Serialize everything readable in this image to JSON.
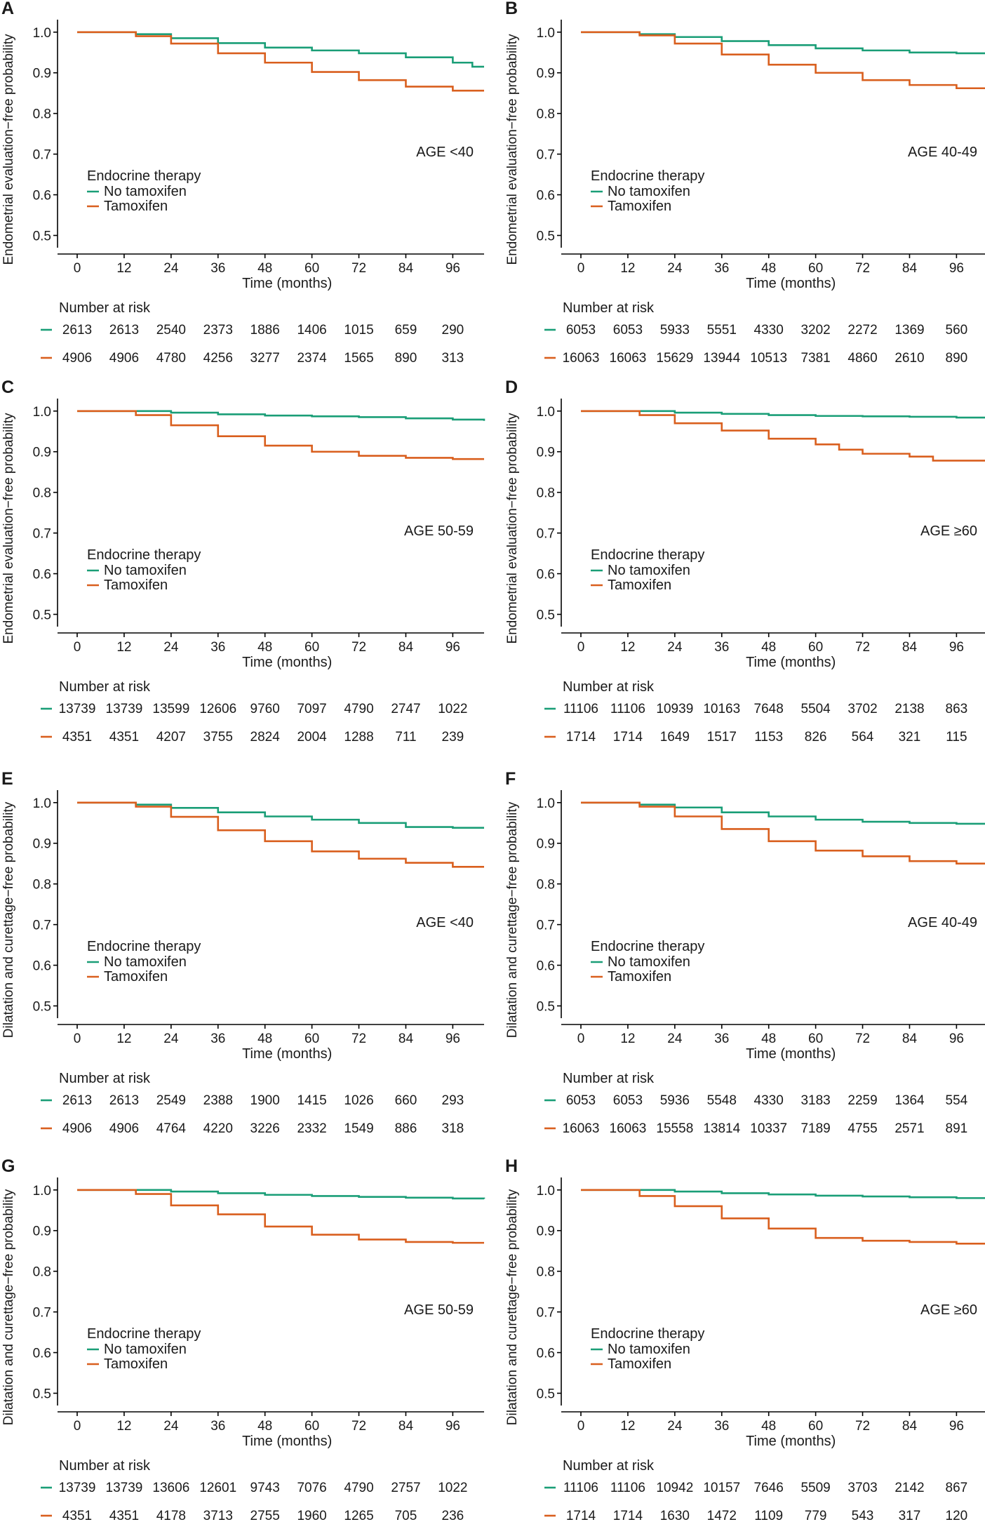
{
  "colors": {
    "no_tamoxifen": "#1a9e77",
    "tamoxifen": "#d95f1e"
  },
  "chart_data": [
    {
      "panel": "A",
      "type": "line",
      "step": true,
      "ylabel": "Endometrial evaluation−free probability",
      "xlabel": "Time (months)",
      "xticks": [
        0,
        12,
        24,
        36,
        48,
        60,
        72,
        84,
        96
      ],
      "xlim": [
        0,
        104
      ],
      "yticks": [
        "1.0",
        "0.9",
        "0.8",
        "0.7",
        "0.6",
        "0.5"
      ],
      "ylim": [
        0.475,
        1.01
      ],
      "age_label": "AGE <40",
      "legend": {
        "title": "Endocrine therapy",
        "entries": [
          "No tamoxifen",
          "Tamoxifen"
        ]
      },
      "series": [
        {
          "name": "No tamoxifen",
          "color": "#1a9e77",
          "x": [
            0,
            12,
            15,
            24,
            36,
            48,
            60,
            72,
            84,
            96,
            101,
            104
          ],
          "y": [
            1.0,
            1.0,
            0.995,
            0.985,
            0.973,
            0.962,
            0.955,
            0.948,
            0.938,
            0.925,
            0.915,
            0.915
          ]
        },
        {
          "name": "Tamoxifen",
          "color": "#d95f1e",
          "x": [
            0,
            12,
            15,
            24,
            36,
            48,
            60,
            72,
            84,
            96,
            104
          ],
          "y": [
            1.0,
            1.0,
            0.99,
            0.972,
            0.948,
            0.925,
            0.902,
            0.882,
            0.866,
            0.856,
            0.856
          ]
        }
      ],
      "risk": {
        "title": "Number at risk",
        "no_tamoxifen": [
          "2613",
          "2613",
          "2540",
          "2373",
          "1886",
          "1406",
          "1015",
          "659",
          "290"
        ],
        "tamoxifen": [
          "4906",
          "4906",
          "4780",
          "4256",
          "3277",
          "2374",
          "1565",
          "890",
          "313"
        ]
      }
    },
    {
      "panel": "B",
      "type": "line",
      "step": true,
      "ylabel": "Endometrial evaluation−free probability",
      "xlabel": "Time (months)",
      "xticks": [
        0,
        12,
        24,
        36,
        48,
        60,
        72,
        84,
        96
      ],
      "xlim": [
        0,
        104
      ],
      "yticks": [
        "1.0",
        "0.9",
        "0.8",
        "0.7",
        "0.6",
        "0.5"
      ],
      "ylim": [
        0.475,
        1.01
      ],
      "age_label": "AGE 40-49",
      "legend": {
        "title": "Endocrine therapy",
        "entries": [
          "No tamoxifen",
          "Tamoxifen"
        ]
      },
      "series": [
        {
          "name": "No tamoxifen",
          "color": "#1a9e77",
          "x": [
            0,
            12,
            15,
            24,
            36,
            48,
            60,
            72,
            84,
            96,
            104
          ],
          "y": [
            1.0,
            1.0,
            0.995,
            0.988,
            0.978,
            0.968,
            0.96,
            0.955,
            0.95,
            0.948,
            0.948
          ]
        },
        {
          "name": "Tamoxifen",
          "color": "#d95f1e",
          "x": [
            0,
            12,
            15,
            24,
            36,
            48,
            60,
            72,
            84,
            96,
            104
          ],
          "y": [
            1.0,
            1.0,
            0.992,
            0.972,
            0.945,
            0.92,
            0.9,
            0.882,
            0.87,
            0.862,
            0.855
          ]
        }
      ],
      "risk": {
        "title": "Number at risk",
        "no_tamoxifen": [
          "6053",
          "6053",
          "5933",
          "5551",
          "4330",
          "3202",
          "2272",
          "1369",
          "560"
        ],
        "tamoxifen": [
          "16063",
          "16063",
          "15629",
          "13944",
          "10513",
          "7381",
          "4860",
          "2610",
          "890"
        ]
      }
    },
    {
      "panel": "C",
      "type": "line",
      "step": true,
      "ylabel": "Endometrial evaluation−free probability",
      "xlabel": "Time (months)",
      "xticks": [
        0,
        12,
        24,
        36,
        48,
        60,
        72,
        84,
        96
      ],
      "xlim": [
        0,
        104
      ],
      "yticks": [
        "1.0",
        "0.9",
        "0.8",
        "0.7",
        "0.6",
        "0.5"
      ],
      "ylim": [
        0.475,
        1.01
      ],
      "age_label": "AGE 50-59",
      "legend": {
        "title": "Endocrine therapy",
        "entries": [
          "No tamoxifen",
          "Tamoxifen"
        ]
      },
      "series": [
        {
          "name": "No tamoxifen",
          "color": "#1a9e77",
          "x": [
            0,
            12,
            24,
            36,
            48,
            60,
            72,
            84,
            96,
            104
          ],
          "y": [
            1.0,
            1.0,
            0.996,
            0.992,
            0.989,
            0.987,
            0.985,
            0.982,
            0.979,
            0.976
          ]
        },
        {
          "name": "Tamoxifen",
          "color": "#d95f1e",
          "x": [
            0,
            12,
            15,
            24,
            36,
            48,
            60,
            72,
            84,
            96,
            104
          ],
          "y": [
            1.0,
            1.0,
            0.99,
            0.965,
            0.938,
            0.915,
            0.9,
            0.89,
            0.885,
            0.882,
            0.882
          ]
        }
      ],
      "risk": {
        "title": "Number at risk",
        "no_tamoxifen": [
          "13739",
          "13739",
          "13599",
          "12606",
          "9760",
          "7097",
          "4790",
          "2747",
          "1022"
        ],
        "tamoxifen": [
          "4351",
          "4351",
          "4207",
          "3755",
          "2824",
          "2004",
          "1288",
          "711",
          "239"
        ]
      }
    },
    {
      "panel": "D",
      "type": "line",
      "step": true,
      "ylabel": "Endometrial evaluation−free probability",
      "xlabel": "Time (months)",
      "xticks": [
        0,
        12,
        24,
        36,
        48,
        60,
        72,
        84,
        96
      ],
      "xlim": [
        0,
        104
      ],
      "yticks": [
        "1.0",
        "0.9",
        "0.8",
        "0.7",
        "0.6",
        "0.5"
      ],
      "ylim": [
        0.475,
        1.01
      ],
      "age_label": "AGE ≥60",
      "legend": {
        "title": "Endocrine therapy",
        "entries": [
          "No tamoxifen",
          "Tamoxifen"
        ]
      },
      "series": [
        {
          "name": "No tamoxifen",
          "color": "#1a9e77",
          "x": [
            0,
            12,
            24,
            36,
            48,
            60,
            72,
            84,
            96,
            104
          ],
          "y": [
            1.0,
            1.0,
            0.996,
            0.993,
            0.99,
            0.988,
            0.987,
            0.986,
            0.984,
            0.98
          ]
        },
        {
          "name": "Tamoxifen",
          "color": "#d95f1e",
          "x": [
            0,
            12,
            15,
            24,
            36,
            48,
            60,
            66,
            72,
            84,
            90,
            96,
            104
          ],
          "y": [
            1.0,
            1.0,
            0.99,
            0.97,
            0.952,
            0.932,
            0.918,
            0.905,
            0.895,
            0.888,
            0.878,
            0.878,
            0.878
          ]
        }
      ],
      "risk": {
        "title": "Number at risk",
        "no_tamoxifen": [
          "11106",
          "11106",
          "10939",
          "10163",
          "7648",
          "5504",
          "3702",
          "2138",
          "863"
        ],
        "tamoxifen": [
          "1714",
          "1714",
          "1649",
          "1517",
          "1153",
          "826",
          "564",
          "321",
          "115"
        ]
      }
    },
    {
      "panel": "E",
      "type": "line",
      "step": true,
      "ylabel": "Dilatation and curettage−free probability",
      "xlabel": "Time (months)",
      "xticks": [
        0,
        12,
        24,
        36,
        48,
        60,
        72,
        84,
        96
      ],
      "xlim": [
        0,
        104
      ],
      "yticks": [
        "1.0",
        "0.9",
        "0.8",
        "0.7",
        "0.6",
        "0.5"
      ],
      "ylim": [
        0.475,
        1.01
      ],
      "age_label": "AGE <40",
      "legend": {
        "title": "Endocrine therapy",
        "entries": [
          "No tamoxifen",
          "Tamoxifen"
        ]
      },
      "series": [
        {
          "name": "No tamoxifen",
          "color": "#1a9e77",
          "x": [
            0,
            12,
            15,
            24,
            36,
            48,
            60,
            72,
            84,
            96,
            104
          ],
          "y": [
            1.0,
            1.0,
            0.995,
            0.987,
            0.976,
            0.966,
            0.958,
            0.95,
            0.94,
            0.938,
            0.938
          ]
        },
        {
          "name": "Tamoxifen",
          "color": "#d95f1e",
          "x": [
            0,
            12,
            15,
            24,
            36,
            48,
            60,
            72,
            84,
            96,
            104
          ],
          "y": [
            1.0,
            1.0,
            0.99,
            0.965,
            0.932,
            0.905,
            0.88,
            0.862,
            0.852,
            0.842,
            0.842
          ]
        }
      ],
      "risk": {
        "title": "Number at risk",
        "no_tamoxifen": [
          "2613",
          "2613",
          "2549",
          "2388",
          "1900",
          "1415",
          "1026",
          "660",
          "293"
        ],
        "tamoxifen": [
          "4906",
          "4906",
          "4764",
          "4220",
          "3226",
          "2332",
          "1549",
          "886",
          "318"
        ]
      }
    },
    {
      "panel": "F",
      "type": "line",
      "step": true,
      "ylabel": "Dilatation and curettage−free probability",
      "xlabel": "Time (months)",
      "xticks": [
        0,
        12,
        24,
        36,
        48,
        60,
        72,
        84,
        96
      ],
      "xlim": [
        0,
        104
      ],
      "yticks": [
        "1.0",
        "0.9",
        "0.8",
        "0.7",
        "0.6",
        "0.5"
      ],
      "ylim": [
        0.475,
        1.01
      ],
      "age_label": "AGE 40-49",
      "legend": {
        "title": "Endocrine therapy",
        "entries": [
          "No tamoxifen",
          "Tamoxifen"
        ]
      },
      "series": [
        {
          "name": "No tamoxifen",
          "color": "#1a9e77",
          "x": [
            0,
            12,
            15,
            24,
            36,
            48,
            60,
            72,
            84,
            96,
            104
          ],
          "y": [
            1.0,
            1.0,
            0.995,
            0.988,
            0.976,
            0.966,
            0.958,
            0.953,
            0.95,
            0.948,
            0.945
          ]
        },
        {
          "name": "Tamoxifen",
          "color": "#d95f1e",
          "x": [
            0,
            12,
            15,
            24,
            36,
            48,
            60,
            72,
            84,
            96,
            104
          ],
          "y": [
            1.0,
            1.0,
            0.99,
            0.966,
            0.935,
            0.905,
            0.882,
            0.868,
            0.856,
            0.85,
            0.842
          ]
        }
      ],
      "risk": {
        "title": "Number at risk",
        "no_tamoxifen": [
          "6053",
          "6053",
          "5936",
          "5548",
          "4330",
          "3183",
          "2259",
          "1364",
          "554"
        ],
        "tamoxifen": [
          "16063",
          "16063",
          "15558",
          "13814",
          "10337",
          "7189",
          "4755",
          "2571",
          "891"
        ]
      }
    },
    {
      "panel": "G",
      "type": "line",
      "step": true,
      "ylabel": "Dilatation and curettage−free probability",
      "xlabel": "Time (months)",
      "xticks": [
        0,
        12,
        24,
        36,
        48,
        60,
        72,
        84,
        96
      ],
      "xlim": [
        0,
        104
      ],
      "yticks": [
        "1.0",
        "0.9",
        "0.8",
        "0.7",
        "0.6",
        "0.5"
      ],
      "ylim": [
        0.475,
        1.01
      ],
      "age_label": "AGE 50-59",
      "legend": {
        "title": "Endocrine therapy",
        "entries": [
          "No tamoxifen",
          "Tamoxifen"
        ]
      },
      "series": [
        {
          "name": "No tamoxifen",
          "color": "#1a9e77",
          "x": [
            0,
            12,
            24,
            36,
            48,
            60,
            72,
            84,
            96,
            104
          ],
          "y": [
            1.0,
            1.0,
            0.996,
            0.992,
            0.988,
            0.985,
            0.983,
            0.981,
            0.979,
            0.978
          ]
        },
        {
          "name": "Tamoxifen",
          "color": "#d95f1e",
          "x": [
            0,
            12,
            15,
            24,
            36,
            48,
            60,
            72,
            84,
            96,
            104
          ],
          "y": [
            1.0,
            1.0,
            0.99,
            0.962,
            0.94,
            0.91,
            0.89,
            0.878,
            0.872,
            0.87,
            0.87
          ]
        }
      ],
      "risk": {
        "title": "Number at risk",
        "no_tamoxifen": [
          "13739",
          "13739",
          "13606",
          "12601",
          "9743",
          "7076",
          "4790",
          "2757",
          "1022"
        ],
        "tamoxifen": [
          "4351",
          "4351",
          "4178",
          "3713",
          "2755",
          "1960",
          "1265",
          "705",
          "236"
        ]
      }
    },
    {
      "panel": "H",
      "type": "line",
      "step": true,
      "ylabel": "Dilatation and curettage−free probability",
      "xlabel": "Time (months)",
      "xticks": [
        0,
        12,
        24,
        36,
        48,
        60,
        72,
        84,
        96
      ],
      "xlim": [
        0,
        104
      ],
      "yticks": [
        "1.0",
        "0.9",
        "0.8",
        "0.7",
        "0.6",
        "0.5"
      ],
      "ylim": [
        0.475,
        1.01
      ],
      "age_label": "AGE ≥60",
      "legend": {
        "title": "Endocrine therapy",
        "entries": [
          "No tamoxifen",
          "Tamoxifen"
        ]
      },
      "series": [
        {
          "name": "No tamoxifen",
          "color": "#1a9e77",
          "x": [
            0,
            12,
            24,
            36,
            48,
            60,
            72,
            84,
            96,
            104
          ],
          "y": [
            1.0,
            1.0,
            0.996,
            0.992,
            0.989,
            0.986,
            0.984,
            0.982,
            0.98,
            0.978
          ]
        },
        {
          "name": "Tamoxifen",
          "color": "#d95f1e",
          "x": [
            0,
            12,
            15,
            24,
            36,
            48,
            60,
            72,
            84,
            96,
            104
          ],
          "y": [
            1.0,
            1.0,
            0.985,
            0.96,
            0.93,
            0.905,
            0.882,
            0.875,
            0.872,
            0.868,
            0.866
          ]
        }
      ],
      "risk": {
        "title": "Number at risk",
        "no_tamoxifen": [
          "11106",
          "11106",
          "10942",
          "10157",
          "7646",
          "5509",
          "3703",
          "2142",
          "867"
        ],
        "tamoxifen": [
          "1714",
          "1714",
          "1630",
          "1472",
          "1109",
          "779",
          "543",
          "317",
          "120"
        ]
      }
    }
  ]
}
